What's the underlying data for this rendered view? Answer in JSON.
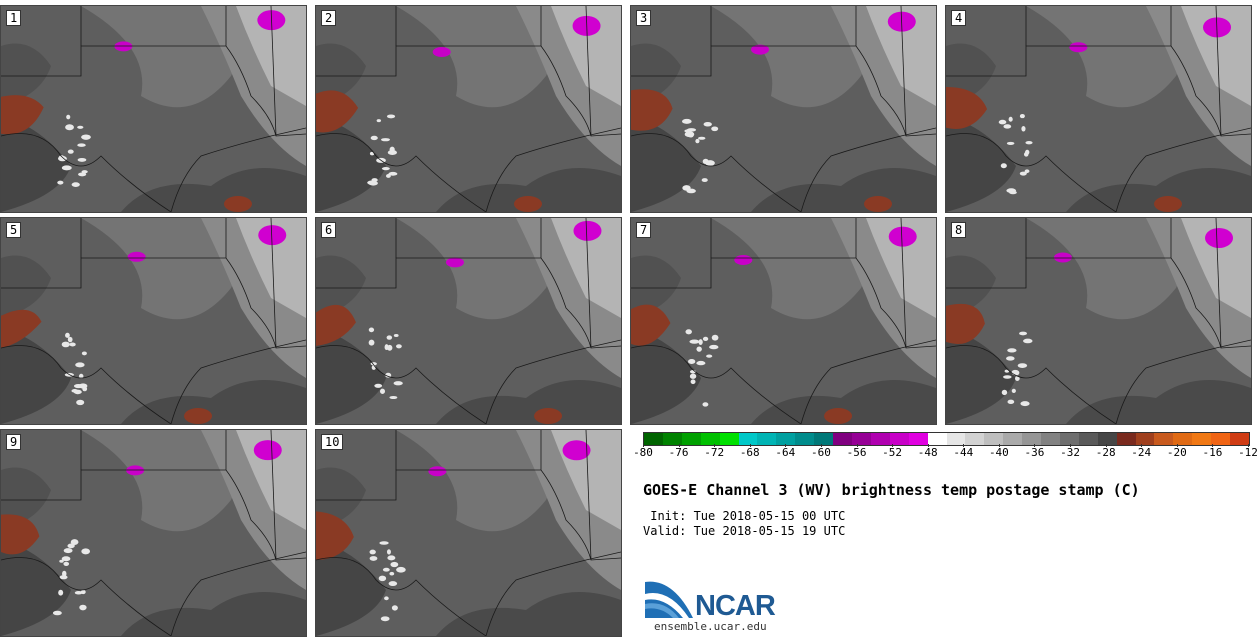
{
  "panels": [
    {
      "label": "1"
    },
    {
      "label": "2"
    },
    {
      "label": "3"
    },
    {
      "label": "4"
    },
    {
      "label": "5"
    },
    {
      "label": "6"
    },
    {
      "label": "7"
    },
    {
      "label": "8"
    },
    {
      "label": "9"
    },
    {
      "label": "10"
    }
  ],
  "colorbar": {
    "colors": [
      "#006400",
      "#008200",
      "#00a000",
      "#00c000",
      "#00e000",
      "#00c8c8",
      "#00b4b4",
      "#00a0a0",
      "#008c8c",
      "#007878",
      "#800080",
      "#960096",
      "#b000b0",
      "#c800c8",
      "#e000e0",
      "#ffffff",
      "#e6e6e6",
      "#d2d2d2",
      "#bebebe",
      "#aaaaaa",
      "#969696",
      "#828282",
      "#6e6e6e",
      "#5a5a5a",
      "#464646",
      "#7a2a1e",
      "#a0401e",
      "#c85a1e",
      "#e06a14",
      "#f07814",
      "#f06414",
      "#d03c14"
    ],
    "tick_labels": [
      "-80",
      "-76",
      "-72",
      "-68",
      "-64",
      "-60",
      "-56",
      "-52",
      "-48",
      "-44",
      "-40",
      "-36",
      "-32",
      "-28",
      "-24",
      "-20",
      "-16",
      "-12"
    ]
  },
  "title": "GOES-E Channel 3 (WV) brightness temp postage stamp (C)",
  "init_line": " Init: Tue 2018-05-15 00 UTC",
  "valid_line": "Valid: Tue 2018-05-15 19 UTC",
  "logo_text": "NCAR",
  "url": "ensemble.ucar.edu"
}
